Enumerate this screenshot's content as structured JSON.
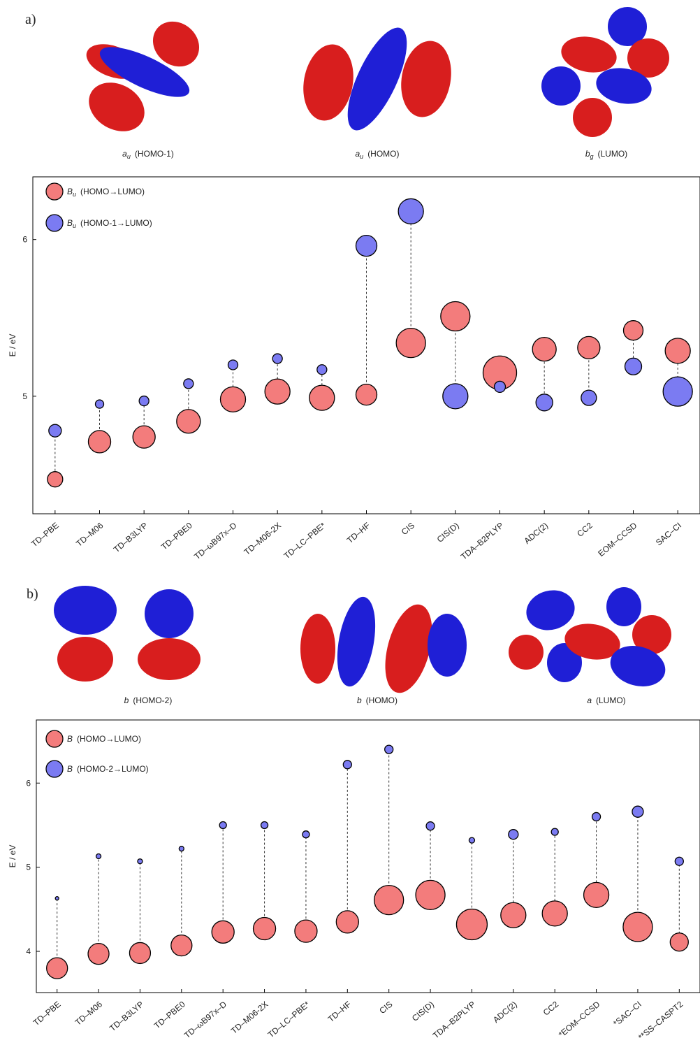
{
  "panels": [
    {
      "label": "a)",
      "orbitals": [
        {
          "symbol": "a",
          "subscript": "u",
          "label": "(HOMO-1)"
        },
        {
          "symbol": "a",
          "subscript": "u",
          "label": "(HOMO)"
        },
        {
          "symbol": "b",
          "subscript": "g",
          "label": "(LUMO)"
        }
      ]
    },
    {
      "label": "b)",
      "orbitals": [
        {
          "symbol": "b",
          "label": "(HOMO-2)"
        },
        {
          "symbol": "b",
          "label": "(HOMO)"
        },
        {
          "symbol": "a",
          "label": "(LUMO)"
        }
      ]
    }
  ],
  "chart_data": [
    {
      "type": "bubble",
      "ylabel": "E / eV",
      "ylim": [
        4.25,
        6.4
      ],
      "yticks": [
        5,
        6
      ],
      "categories": [
        "TD–PBE",
        "TD–M06",
        "TD–B3LYP",
        "TD–PBE0",
        "TD–ωB97x–D",
        "TD–M06-2X",
        "TD–LC–PBE*",
        "TD–HF",
        "CIS",
        "CIS(D)",
        "TDA–B2PLYP",
        "ADC(2)",
        "CC2",
        "EOM–CCSD",
        "SAC–CI"
      ],
      "series": [
        {
          "symbol": "B",
          "subscript": "u",
          "name": "(HOMO→LUMO)",
          "color": "#f37c7c",
          "values": [
            4.47,
            4.71,
            4.74,
            4.84,
            4.98,
            5.03,
            4.99,
            5.01,
            5.34,
            5.51,
            5.15,
            5.3,
            5.31,
            5.42,
            5.29
          ],
          "sizes": [
            11,
            16,
            16,
            17,
            18,
            18,
            18,
            15,
            21,
            21,
            24,
            17,
            16,
            14,
            18
          ]
        },
        {
          "symbol": "B",
          "subscript": "u",
          "name": "(HOMO-1→LUMO)",
          "color": "#7b7bf2",
          "values": [
            4.78,
            4.95,
            4.97,
            5.08,
            5.2,
            5.24,
            5.17,
            5.96,
            6.18,
            5.0,
            5.06,
            4.96,
            4.99,
            5.19,
            5.03
          ],
          "sizes": [
            9,
            6,
            7,
            7,
            7,
            7,
            7,
            15,
            18,
            18,
            8,
            12,
            11,
            12,
            21
          ]
        }
      ]
    },
    {
      "type": "bubble",
      "ylabel": "E / eV",
      "ylim": [
        3.51,
        6.75
      ],
      "yticks": [
        4,
        5,
        6
      ],
      "categories": [
        "TD–PBE",
        "TD–M06",
        "TD–B3LYP",
        "TD–PBE0",
        "TD–ωB97x–D",
        "TD–M06-2X",
        "TD–LC–PBE*",
        "TD–HF",
        "CIS",
        "CIS(D)",
        "TDA–B2PLYP",
        "ADC(2)",
        "CC2",
        "*EOM–CCSD",
        "*SAC–CI",
        "**SS–CASPT2"
      ],
      "series": [
        {
          "symbol": "B",
          "name": "(HOMO→LUMO)",
          "color": "#f37c7c",
          "values": [
            3.8,
            3.97,
            3.98,
            4.07,
            4.23,
            4.27,
            4.24,
            4.35,
            4.61,
            4.67,
            4.32,
            4.43,
            4.45,
            4.67,
            4.29,
            4.11
          ],
          "sizes": [
            15,
            15,
            15,
            15,
            16,
            16,
            16,
            16,
            21,
            21,
            22,
            18,
            18,
            18,
            21,
            13
          ]
        },
        {
          "symbol": "B",
          "name": "(HOMO-2→LUMO)",
          "color": "#7b7bf2",
          "values": [
            4.63,
            5.13,
            5.07,
            5.22,
            5.5,
            5.5,
            5.39,
            6.22,
            6.4,
            5.49,
            5.32,
            5.39,
            5.42,
            5.6,
            5.66,
            5.07
          ],
          "sizes": [
            2.5,
            3.5,
            3.5,
            3.5,
            5,
            5,
            5,
            6,
            6,
            6,
            4,
            7,
            5,
            6,
            8,
            6
          ]
        }
      ]
    }
  ]
}
